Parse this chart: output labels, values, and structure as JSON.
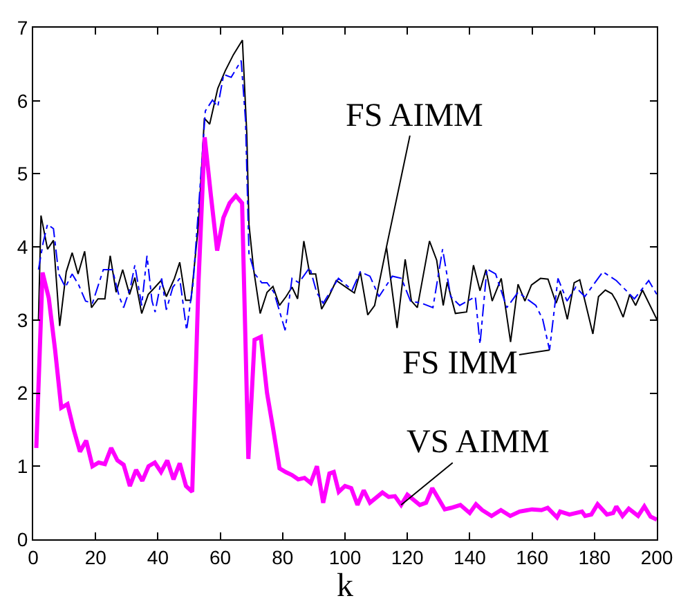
{
  "chart_data": {
    "type": "line",
    "xlabel": "k",
    "xlim": [
      0,
      200
    ],
    "xticks": [
      0,
      20,
      40,
      60,
      80,
      100,
      120,
      140,
      160,
      180,
      200
    ],
    "ylim": [
      0,
      7
    ],
    "yticks": [
      0,
      1,
      2,
      3,
      4,
      5,
      6,
      7
    ],
    "series": [
      {
        "color": "#000000",
        "line_style": "solid",
        "x": [
          1.7,
          2.5,
          4.6,
          6.5,
          8.5,
          10.6,
          12.5,
          14.4,
          16.5,
          18.7,
          20.8,
          23,
          24.7,
          26.6,
          28.7,
          30.9,
          32.6,
          34.8,
          36.9,
          39.1,
          41,
          42.7,
          45.3,
          47,
          48.9,
          50.6,
          53,
          54.9,
          56.6,
          59.2,
          61.6,
          64.2,
          67.1,
          68.5,
          69.2,
          70.7,
          72.8,
          75,
          76.9,
          79,
          81.1,
          83,
          84.8,
          86.8,
          88.7,
          90.6,
          92.5,
          94.8,
          97.2,
          103,
          104.9,
          107.3,
          109.5,
          113.3,
          116.7,
          119.3,
          121.3,
          123.2,
          127.1,
          129.4,
          131.5,
          132.8,
          135.4,
          139,
          141.2,
          143.3,
          145.2,
          147.2,
          150.1,
          153.1,
          155.5,
          157.7,
          159.8,
          162.7,
          165.1,
          167.7,
          169.1,
          171.3,
          173.5,
          175.3,
          177.3,
          179.5,
          181.3,
          183.5,
          185.6,
          187,
          189.2,
          191.3,
          193.2,
          195.4,
          200
        ],
        "values": [
          3.0,
          4.43,
          3.97,
          4.09,
          2.92,
          3.66,
          3.92,
          3.63,
          3.94,
          3.17,
          3.29,
          3.29,
          3.88,
          3.38,
          3.69,
          3.35,
          3.58,
          3.09,
          3.35,
          3.45,
          3.54,
          3.32,
          3.57,
          3.79,
          3.27,
          3.27,
          4.31,
          5.76,
          5.68,
          6.17,
          6.41,
          6.63,
          6.83,
          5.55,
          4.31,
          3.69,
          3.09,
          3.38,
          3.46,
          3.2,
          3.32,
          3.45,
          3.29,
          4.08,
          3.63,
          3.63,
          3.15,
          3.32,
          3.54,
          3.37,
          3.66,
          3.07,
          3.2,
          4.0,
          2.89,
          3.83,
          3.26,
          3.17,
          4.08,
          3.82,
          3.2,
          3.52,
          3.09,
          3.11,
          3.75,
          3.4,
          3.69,
          3.26,
          3.57,
          2.7,
          3.49,
          3.26,
          3.48,
          3.57,
          3.56,
          3.23,
          3.4,
          3.01,
          3.51,
          3.55,
          3.2,
          2.81,
          3.32,
          3.41,
          3.36,
          3.26,
          3.04,
          3.35,
          3.2,
          3.41,
          3.01
        ]
      },
      {
        "color": "#0000ff",
        "line_style": "dashed",
        "x": [
          1.7,
          3.2,
          4.6,
          6.5,
          8.2,
          10.3,
          12.5,
          14.6,
          16.8,
          19,
          22.5,
          25.4,
          27.6,
          29,
          31.2,
          32.6,
          34.8,
          36.5,
          38.1,
          39.1,
          41.2,
          42.7,
          44.8,
          47,
          49.2,
          51.3,
          53.5,
          55.2,
          57.5,
          59.2,
          61.1,
          63.5,
          66.7,
          68.1,
          69.2,
          71.1,
          73.3,
          75,
          77.2,
          80.8,
          83,
          85.2,
          88.7,
          90.9,
          93,
          97.9,
          102.3,
          104.9,
          108,
          110.9,
          115.2,
          118.1,
          121,
          124.6,
          128.2,
          131.3,
          133.9,
          136.8,
          141.8,
          143.3,
          145.5,
          148.3,
          151.9,
          155.5,
          161.2,
          163.4,
          165.6,
          168.3,
          171.2,
          174,
          176.9,
          182.7,
          187,
          192.8,
          197.4,
          200
        ],
        "values": [
          3.69,
          4.06,
          4.31,
          4.25,
          3.63,
          3.45,
          3.63,
          3.48,
          3.26,
          3.23,
          3.69,
          3.69,
          3.32,
          3.17,
          3.45,
          3.75,
          3.2,
          3.88,
          3.26,
          3.11,
          3.57,
          3.14,
          3.45,
          3.57,
          2.86,
          3.51,
          4.81,
          5.86,
          6.01,
          5.92,
          6.36,
          6.32,
          6.55,
          5.73,
          3.91,
          3.63,
          3.51,
          3.51,
          3.38,
          2.86,
          3.57,
          3.51,
          3.72,
          3.38,
          3.23,
          3.57,
          3.41,
          3.66,
          3.6,
          3.32,
          3.6,
          3.57,
          3.26,
          3.23,
          3.17,
          3.97,
          3.32,
          3.2,
          3.32,
          2.67,
          3.7,
          3.63,
          3.17,
          3.38,
          3.2,
          3.01,
          2.59,
          3.57,
          3.26,
          3.45,
          3.32,
          3.66,
          3.54,
          3.29,
          3.54,
          3.35
        ]
      },
      {
        "color": "#ff00ff",
        "line_style": "solid",
        "x": [
          1,
          3,
          5,
          7,
          9,
          11,
          13,
          15,
          17,
          19,
          21,
          23,
          25,
          27,
          29,
          31,
          33,
          35,
          37,
          39,
          41,
          43,
          45,
          47,
          49,
          51,
          53,
          55,
          57,
          59,
          61,
          63,
          65,
          67,
          69,
          71,
          73,
          75,
          77,
          79,
          81,
          83,
          85,
          87,
          89,
          91,
          93,
          95,
          96.4,
          98,
          100,
          102,
          104,
          106,
          108,
          112,
          114,
          116,
          118,
          120,
          124,
          126,
          128,
          132,
          134,
          137,
          140,
          142,
          144,
          147,
          150,
          153,
          156,
          160,
          163,
          165,
          168,
          169,
          172,
          176,
          177,
          179,
          181,
          184,
          186,
          187,
          189,
          191,
          194,
          196,
          198,
          200
        ],
        "values": [
          1.25,
          3.65,
          3.3,
          2.6,
          1.8,
          1.85,
          1.5,
          1.2,
          1.35,
          1.0,
          1.05,
          1.03,
          1.25,
          1.08,
          1.02,
          0.73,
          0.95,
          0.8,
          1.0,
          1.05,
          0.92,
          1.08,
          0.82,
          1.04,
          0.73,
          0.65,
          3.5,
          5.5,
          4.7,
          3.95,
          4.4,
          4.6,
          4.7,
          4.6,
          1.1,
          2.73,
          2.77,
          2.0,
          1.5,
          0.97,
          0.92,
          0.88,
          0.82,
          0.84,
          0.77,
          1.0,
          0.5,
          0.9,
          0.92,
          0.65,
          0.73,
          0.7,
          0.47,
          0.67,
          0.5,
          0.64,
          0.58,
          0.59,
          0.47,
          0.61,
          0.47,
          0.5,
          0.7,
          0.41,
          0.43,
          0.47,
          0.36,
          0.48,
          0.4,
          0.32,
          0.4,
          0.32,
          0.38,
          0.41,
          0.4,
          0.43,
          0.3,
          0.38,
          0.34,
          0.38,
          0.32,
          0.34,
          0.48,
          0.34,
          0.36,
          0.45,
          0.32,
          0.42,
          0.32,
          0.45,
          0.31,
          0.27
        ]
      }
    ],
    "annotations": [
      {
        "text": "FS AIMM",
        "x": 113.3,
        "y": 4.0
      },
      {
        "text": "FS IMM",
        "x": 165.6,
        "y": 2.59
      },
      {
        "text": "VS AIMM",
        "x": 118,
        "y": 0.47
      }
    ]
  }
}
